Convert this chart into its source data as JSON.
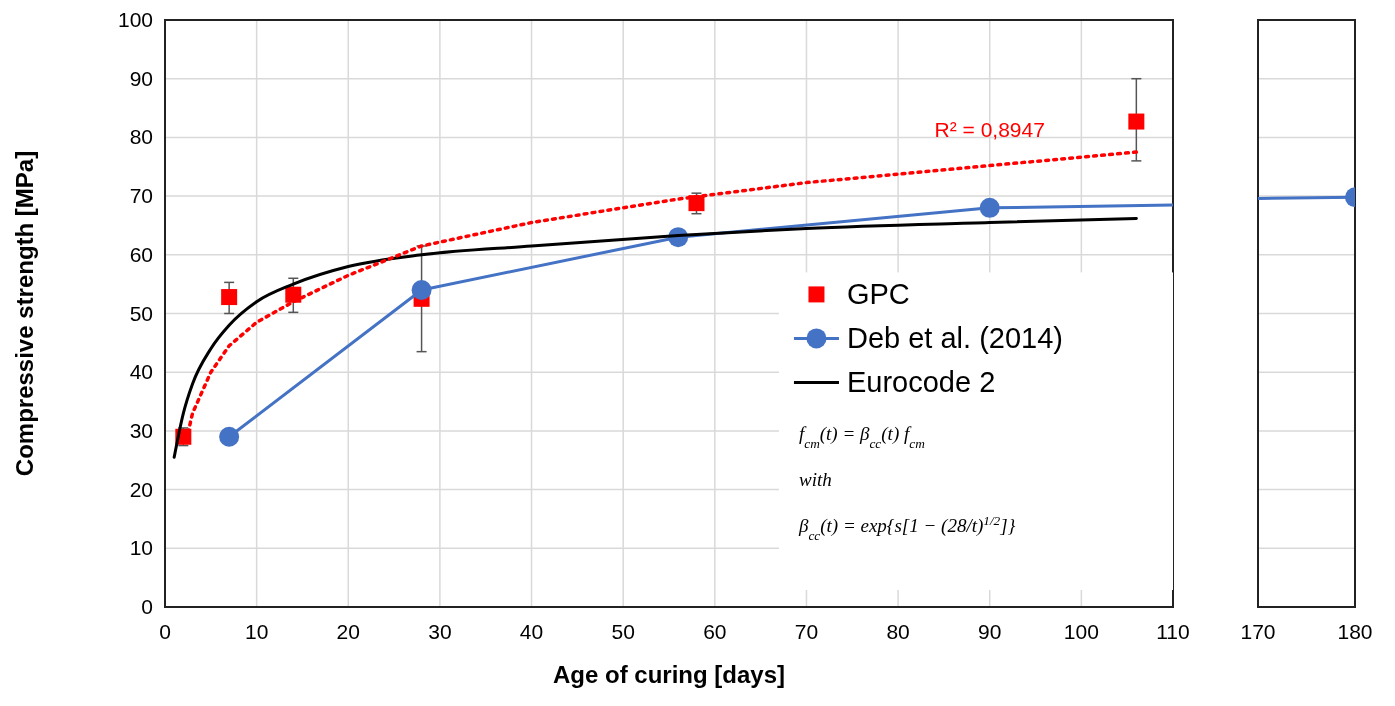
{
  "chart_data": [
    {
      "type": "line",
      "xlabel": "Age of curing [days]",
      "ylabel": "Compressive strength [MPa]",
      "xlim": [
        0,
        110
      ],
      "xticks": [
        0,
        10,
        20,
        30,
        40,
        50,
        60,
        70,
        80,
        90,
        100,
        110
      ],
      "ylim": [
        0,
        100
      ],
      "yticks": [
        0,
        10,
        20,
        30,
        40,
        50,
        60,
        70,
        80,
        90,
        100
      ],
      "grid": true,
      "legend": "right",
      "series": [
        {
          "name": "GPC",
          "type": "scatter",
          "marker": "square",
          "color": "#ff0000",
          "x": [
            2,
            7,
            14,
            28,
            58,
            106
          ],
          "values": [
            29,
            52.8,
            53.2,
            52.5,
            68.8,
            82.7
          ],
          "errors": [
            [
              27.5,
              30.5
            ],
            [
              50,
              55.3
            ],
            [
              50.2,
              56
            ],
            [
              43.5,
              61.5
            ],
            [
              67,
              70.5
            ],
            [
              76,
              90
            ]
          ]
        },
        {
          "name": "Deb et al. (2014)",
          "marker": "circle",
          "color": "#4472c4",
          "x": [
            7,
            28,
            56,
            90
          ],
          "values": [
            29,
            54,
            63,
            68
          ]
        },
        {
          "name": "Eurocode 2",
          "marker": "none",
          "color": "#000000",
          "x": [
            1,
            2,
            3,
            5,
            7,
            10,
            14,
            20,
            28,
            40,
            56,
            70,
            90,
            106
          ],
          "values": [
            25.5,
            33,
            38,
            44,
            48,
            52,
            55,
            58,
            60,
            61.5,
            63.3,
            64.5,
            65.5,
            66.2
          ]
        },
        {
          "marker": "none",
          "line_style": "dotted",
          "color": "#ff0000",
          "x": [
            2.2,
            3,
            5,
            7,
            10,
            14,
            20,
            28,
            40,
            56,
            70,
            90,
            106
          ],
          "values": [
            27.5,
            33,
            40,
            44.5,
            48.5,
            52,
            56.5,
            61.5,
            65.5,
            69.5,
            72.3,
            75.2,
            77.5
          ]
        },
        {
          "marker": "none",
          "color": "#4472c4",
          "x": [
            90,
            110
          ],
          "values": [
            68,
            68.5
          ]
        }
      ],
      "annotations": [
        "R² = 0,8947",
        "f$_{cm}$(t) = β$_{cc}$(t) f$_{cm}$",
        "with",
        "β$_{cc}$(t) = exp{s[1 − (28/t)$^{1/2}$]}"
      ]
    },
    {
      "type": "line",
      "xlim": [
        170,
        180
      ],
      "xticks": [
        170,
        180
      ],
      "ylim": [
        0,
        100
      ],
      "yticks": [
        0,
        10,
        20,
        30,
        40,
        50,
        60,
        70,
        80,
        90,
        100
      ],
      "grid": true,
      "tick_labels": "x",
      "series": [
        {
          "marker": "none",
          "color": "#4472c4",
          "x": [
            170,
            180
          ],
          "values": [
            69.6,
            69.8
          ]
        },
        {
          "type": "scatter",
          "marker": "circle",
          "color": "#4472c4",
          "x": [
            180
          ],
          "values": [
            69.8
          ]
        }
      ]
    }
  ]
}
